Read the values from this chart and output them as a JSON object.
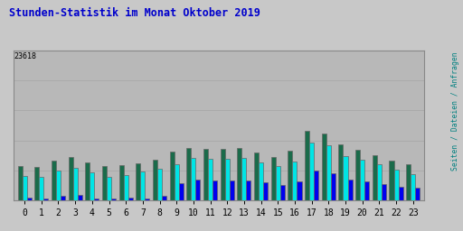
{
  "title": "Stunden-Statistik im Monat Oktober 2019",
  "title_color": "#0000cc",
  "ylabel_right": "Seiten / Dateien / Anfragen",
  "ylabel_right_color": "#008080",
  "max_value_label": "23618",
  "background_outer": "#c8c8c8",
  "background_inner": "#b8b8b8",
  "hours": [
    0,
    1,
    2,
    3,
    4,
    5,
    6,
    7,
    8,
    9,
    10,
    11,
    12,
    13,
    14,
    15,
    16,
    17,
    18,
    19,
    20,
    21,
    22,
    23
  ],
  "seiten": [
    5400,
    5300,
    6300,
    6900,
    6000,
    5400,
    5600,
    5900,
    6400,
    7700,
    8300,
    8200,
    8200,
    8300,
    7600,
    6900,
    7900,
    11000,
    10700,
    8900,
    8100,
    7200,
    6300,
    5700
  ],
  "dateien": [
    3900,
    3800,
    4700,
    5200,
    4500,
    3800,
    4000,
    4600,
    5000,
    5700,
    6800,
    6600,
    6600,
    6700,
    6000,
    5500,
    6200,
    9200,
    8800,
    7100,
    6400,
    5800,
    4900,
    4200
  ],
  "anfragen": [
    400,
    300,
    700,
    800,
    300,
    300,
    400,
    300,
    700,
    2700,
    3300,
    3100,
    3200,
    3200,
    2800,
    2500,
    3000,
    4700,
    4300,
    3300,
    3000,
    2600,
    2100,
    2000
  ],
  "color_seiten": "#1a6b4a",
  "color_dateien": "#00e5e5",
  "color_anfragen": "#0000ee",
  "bar_width": 0.27,
  "font_family": "monospace"
}
